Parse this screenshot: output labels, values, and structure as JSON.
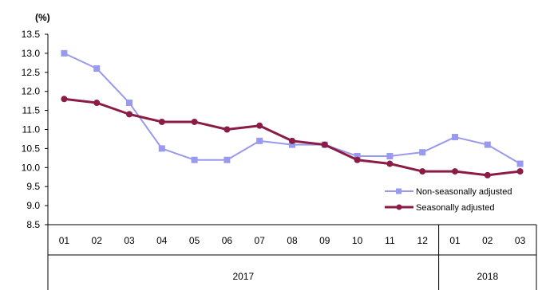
{
  "chart_data": {
    "type": "line",
    "unit_label": "(%)",
    "y_ticks": [
      "13.5",
      "13.0",
      "12.5",
      "12.0",
      "11.5",
      "11.0",
      "10.5",
      "10.0",
      "9.5",
      "9.0",
      "8.5"
    ],
    "ylim": [
      8.5,
      13.5
    ],
    "categories": [
      "01",
      "02",
      "03",
      "04",
      "05",
      "06",
      "07",
      "08",
      "09",
      "10",
      "11",
      "12",
      "01",
      "02",
      "03"
    ],
    "groups": [
      {
        "label": "2017",
        "count": 12
      },
      {
        "label": "2018",
        "count": 3
      }
    ],
    "series": [
      {
        "name": "Non-seasonally adjusted",
        "color": "#9999ee",
        "marker": "square",
        "values": [
          13.0,
          12.6,
          11.7,
          10.5,
          10.2,
          10.2,
          10.7,
          10.6,
          10.6,
          10.3,
          10.3,
          10.4,
          10.8,
          10.6,
          10.1
        ]
      },
      {
        "name": "Seasonally adjusted",
        "color": "#8b1c46",
        "marker": "circle",
        "values": [
          11.8,
          11.7,
          11.4,
          11.2,
          11.2,
          11.0,
          11.1,
          10.7,
          10.6,
          10.2,
          10.1,
          9.9,
          9.9,
          9.8,
          9.9
        ]
      }
    ],
    "grid": false,
    "legend_position": "bottom-right"
  }
}
